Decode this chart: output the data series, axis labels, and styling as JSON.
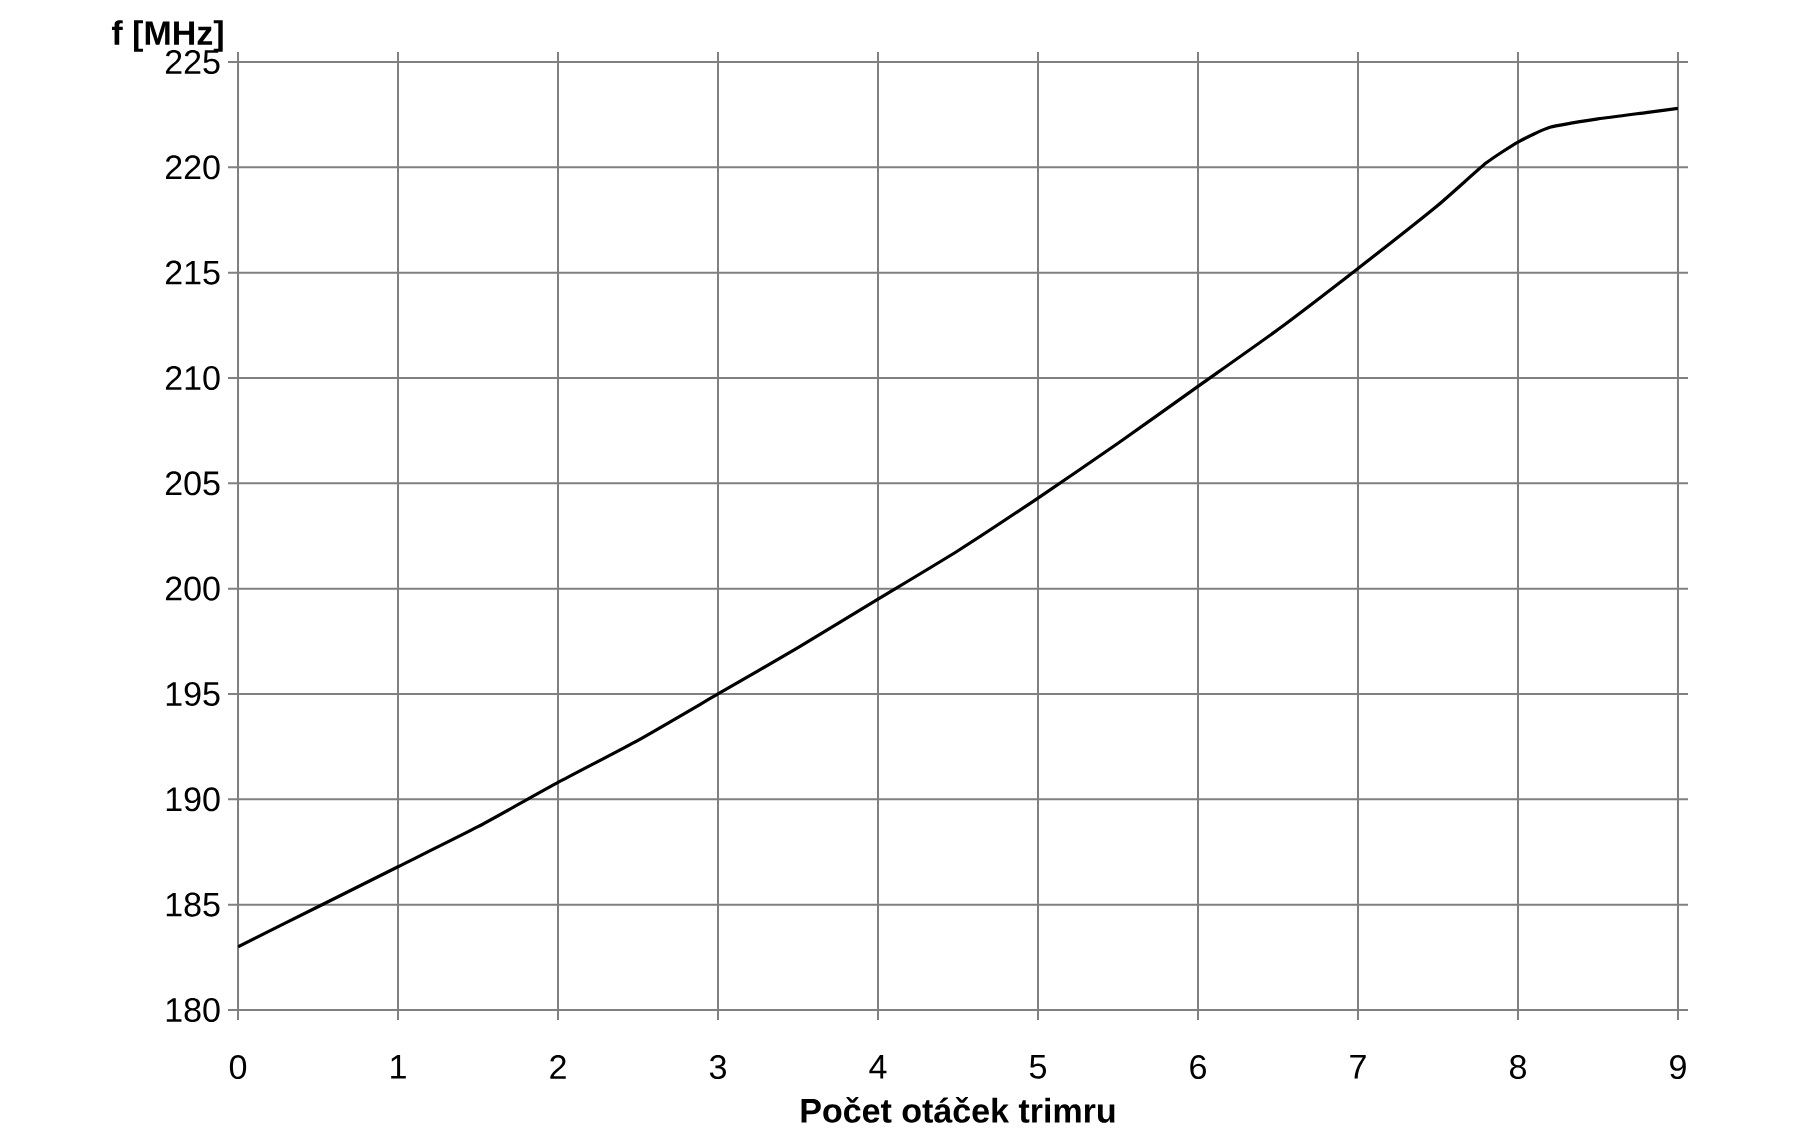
{
  "chart_data": {
    "type": "line",
    "ylabel": "f [MHz]",
    "xlabel": "Počet otáček trimru",
    "x": [
      0,
      0.5,
      1,
      1.5,
      2,
      2.5,
      3,
      3.5,
      4,
      4.5,
      5,
      5.5,
      6,
      6.5,
      7,
      7.5,
      7.8,
      8,
      8.2,
      8.5,
      8.8,
      9
    ],
    "series": [
      {
        "color": "#000000",
        "values": [
          183.0,
          184.9,
          186.8,
          188.7,
          190.8,
          192.8,
          195.0,
          197.2,
          199.5,
          201.8,
          204.3,
          206.9,
          209.6,
          212.3,
          215.2,
          218.2,
          220.2,
          221.2,
          221.9,
          222.3,
          222.6,
          222.8
        ]
      }
    ],
    "xlim": [
      0,
      9
    ],
    "xticks": [
      0,
      1,
      2,
      3,
      4,
      5,
      6,
      7,
      8,
      9
    ],
    "ylim": [
      180,
      225
    ],
    "yticks": [
      180,
      185,
      190,
      195,
      200,
      205,
      210,
      215,
      220,
      225
    ],
    "grid": true,
    "marker": "none",
    "line_style": "solid"
  }
}
